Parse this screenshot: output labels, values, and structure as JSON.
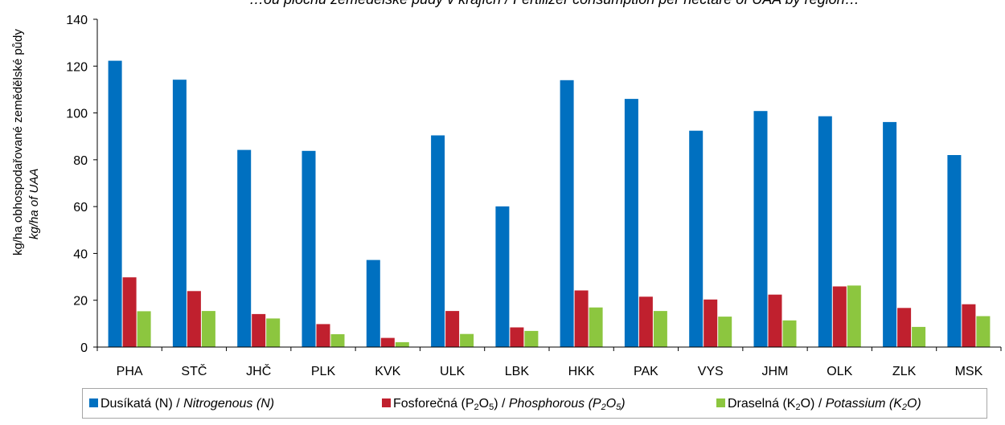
{
  "chart_data": {
    "type": "bar",
    "title": "…ou plochu zemědělské půdy v krajích / Fertilizer consumption per hectare of UAA by region…",
    "ylabel": "kg/ha obhospodařované zemědělské půdy",
    "ylabel_en": "kg/ha of UAA",
    "ylim": [
      0,
      140
    ],
    "yticks": [
      0,
      20,
      40,
      60,
      80,
      100,
      120,
      140
    ],
    "grid": false,
    "legend_position": "bottom",
    "categories": [
      "PHA",
      "STČ",
      "JHČ",
      "PLK",
      "KVK",
      "ULK",
      "LBK",
      "HKK",
      "PAK",
      "VYS",
      "JHM",
      "OLK",
      "ZLK",
      "MSK"
    ],
    "series": [
      {
        "name": "Dusíkatá (N) / Nitrogenous (N)",
        "color": "#0070C0",
        "values": [
          122.3,
          114.2,
          84.2,
          83.8,
          37.2,
          90.4,
          60.1,
          114.0,
          106.0,
          92.4,
          100.8,
          98.6,
          96.1,
          82.0
        ]
      },
      {
        "name": "Fosforečná (P2O5) / Phosphorous (P2O5)",
        "color": "#C0202E",
        "values": [
          29.8,
          23.9,
          14.1,
          9.8,
          3.9,
          15.4,
          8.4,
          24.2,
          21.5,
          20.3,
          22.4,
          25.9,
          16.7,
          18.3
        ]
      },
      {
        "name": "Draselná (K2O) / Potassium (K2O)",
        "color": "#8CC63F",
        "values": [
          15.3,
          15.4,
          12.2,
          5.5,
          2.1,
          5.6,
          6.9,
          16.9,
          15.4,
          13.0,
          11.4,
          26.3,
          8.6,
          13.2
        ]
      }
    ]
  },
  "legend": {
    "n_label": "Dusíkatá (N) / ",
    "n_label_en": "Nitrogenous (N)",
    "p_label_pre": "Fosforečná (P",
    "p_sub_2": "2",
    "p_mid": "O",
    "p_sub_5": "5",
    "p_label_post": ") / ",
    "p_en_pre": "Phosphorous (P",
    "p_en_post": ")",
    "k_label_pre": "Draselná (K",
    "k_sub_2": "2",
    "k_label_post": "O) / ",
    "k_en_pre": "Potassium (K",
    "k_en_post": "O)"
  }
}
